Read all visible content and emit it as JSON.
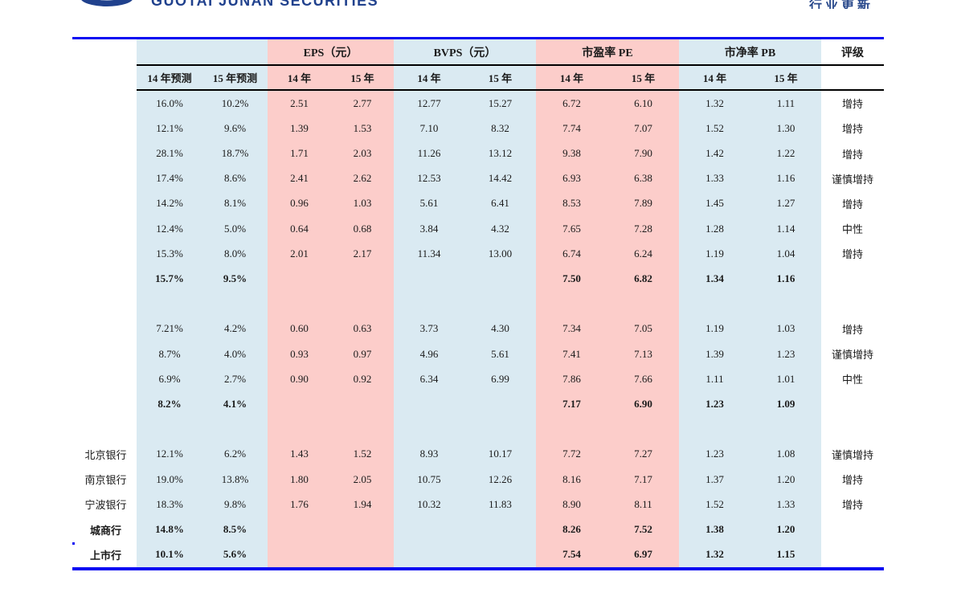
{
  "masthead": {
    "logo_text": "GUOTAI JUNAN SECURITIES",
    "report_type": "行业更新"
  },
  "colors": {
    "accent_blue_line": "#0a0af2",
    "cell_blue": "#daeaf2",
    "cell_pink": "#fccdca",
    "logo_navy": "#20418d"
  },
  "table": {
    "groups": [
      {
        "label": "",
        "color": "blue"
      },
      {
        "label": "EPS（元）",
        "color": "pink"
      },
      {
        "label": "BVPS（元）",
        "color": "blue"
      },
      {
        "label": "市盈率 PE",
        "color": "pink"
      },
      {
        "label": "市净率 PB",
        "color": "blue"
      },
      {
        "label": "评级",
        "color": "white"
      }
    ],
    "subheaders": [
      "14 年预测",
      "15 年预测",
      "14 年",
      "15 年",
      "14 年",
      "15 年",
      "14 年",
      "15 年",
      "14 年",
      "15 年",
      ""
    ],
    "rows": [
      {
        "name": "",
        "bold": false,
        "spacer": false,
        "cells": [
          "16.0%",
          "10.2%",
          "2.51",
          "2.77",
          "12.77",
          "15.27",
          "6.72",
          "6.10",
          "1.32",
          "1.11",
          "增持"
        ]
      },
      {
        "name": "",
        "bold": false,
        "spacer": false,
        "cells": [
          "12.1%",
          "9.6%",
          "1.39",
          "1.53",
          "7.10",
          "8.32",
          "7.74",
          "7.07",
          "1.52",
          "1.30",
          "增持"
        ]
      },
      {
        "name": "",
        "bold": false,
        "spacer": false,
        "cells": [
          "28.1%",
          "18.7%",
          "1.71",
          "2.03",
          "11.26",
          "13.12",
          "9.38",
          "7.90",
          "1.42",
          "1.22",
          "增持"
        ]
      },
      {
        "name": "",
        "bold": false,
        "spacer": false,
        "cells": [
          "17.4%",
          "8.6%",
          "2.41",
          "2.62",
          "12.53",
          "14.42",
          "6.93",
          "6.38",
          "1.33",
          "1.16",
          "谨慎增持"
        ]
      },
      {
        "name": "",
        "bold": false,
        "spacer": false,
        "cells": [
          "14.2%",
          "8.1%",
          "0.96",
          "1.03",
          "5.61",
          "6.41",
          "8.53",
          "7.89",
          "1.45",
          "1.27",
          "增持"
        ]
      },
      {
        "name": "",
        "bold": false,
        "spacer": false,
        "cells": [
          "12.4%",
          "5.0%",
          "0.64",
          "0.68",
          "3.84",
          "4.32",
          "7.65",
          "7.28",
          "1.28",
          "1.14",
          "中性"
        ]
      },
      {
        "name": "",
        "bold": false,
        "spacer": false,
        "cells": [
          "15.3%",
          "8.0%",
          "2.01",
          "2.17",
          "11.34",
          "13.00",
          "6.74",
          "6.24",
          "1.19",
          "1.04",
          "增持"
        ]
      },
      {
        "name": "",
        "bold": true,
        "spacer": false,
        "cells": [
          "15.7%",
          "9.5%",
          "",
          "",
          "",
          "",
          "7.50",
          "6.82",
          "1.34",
          "1.16",
          ""
        ]
      },
      {
        "name": "",
        "bold": false,
        "spacer": true,
        "cells": [
          "",
          "",
          "",
          "",
          "",
          "",
          "",
          "",
          "",
          "",
          ""
        ]
      },
      {
        "name": "",
        "bold": false,
        "spacer": false,
        "cells": [
          "7.21%",
          "4.2%",
          "0.60",
          "0.63",
          "3.73",
          "4.30",
          "7.34",
          "7.05",
          "1.19",
          "1.03",
          "增持"
        ]
      },
      {
        "name": "",
        "bold": false,
        "spacer": false,
        "cells": [
          "8.7%",
          "4.0%",
          "0.93",
          "0.97",
          "4.96",
          "5.61",
          "7.41",
          "7.13",
          "1.39",
          "1.23",
          "谨慎增持"
        ]
      },
      {
        "name": "",
        "bold": false,
        "spacer": false,
        "cells": [
          "6.9%",
          "2.7%",
          "0.90",
          "0.92",
          "6.34",
          "6.99",
          "7.86",
          "7.66",
          "1.11",
          "1.01",
          "中性"
        ]
      },
      {
        "name": "",
        "bold": true,
        "spacer": false,
        "cells": [
          "8.2%",
          "4.1%",
          "",
          "",
          "",
          "",
          "7.17",
          "6.90",
          "1.23",
          "1.09",
          ""
        ]
      },
      {
        "name": "",
        "bold": false,
        "spacer": true,
        "cells": [
          "",
          "",
          "",
          "",
          "",
          "",
          "",
          "",
          "",
          "",
          ""
        ]
      },
      {
        "name": "北京银行",
        "bold": false,
        "spacer": false,
        "cells": [
          "12.1%",
          "6.2%",
          "1.43",
          "1.52",
          "8.93",
          "10.17",
          "7.72",
          "7.27",
          "1.23",
          "1.08",
          "谨慎增持"
        ]
      },
      {
        "name": "南京银行",
        "bold": false,
        "spacer": false,
        "cells": [
          "19.0%",
          "13.8%",
          "1.80",
          "2.05",
          "10.75",
          "12.26",
          "8.16",
          "7.17",
          "1.37",
          "1.20",
          "增持"
        ]
      },
      {
        "name": "宁波银行",
        "bold": false,
        "spacer": false,
        "cells": [
          "18.3%",
          "9.8%",
          "1.76",
          "1.94",
          "10.32",
          "11.83",
          "8.90",
          "8.11",
          "1.52",
          "1.33",
          "增持"
        ]
      },
      {
        "name": "城商行",
        "bold": true,
        "spacer": false,
        "cells": [
          "14.8%",
          "8.5%",
          "",
          "",
          "",
          "",
          "8.26",
          "7.52",
          "1.38",
          "1.20",
          ""
        ]
      },
      {
        "name": "上市行",
        "bold": true,
        "spacer": false,
        "cells": [
          "10.1%",
          "5.6%",
          "",
          "",
          "",
          "",
          "7.54",
          "6.97",
          "1.32",
          "1.15",
          ""
        ]
      }
    ]
  }
}
